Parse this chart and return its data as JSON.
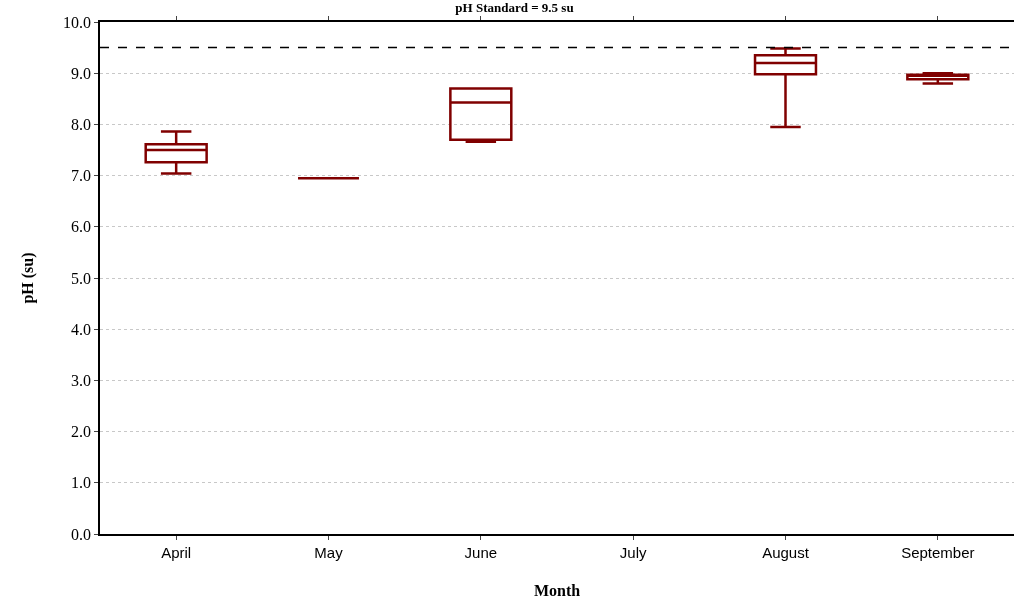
{
  "chart_data": {
    "type": "box",
    "title": "pH Standard = 9.5 su",
    "xlabel": "Month",
    "ylabel": "pH (su)",
    "categories": [
      "April",
      "May",
      "June",
      "July",
      "August",
      "September"
    ],
    "boxes": [
      {
        "low": 7.04,
        "q1": 7.26,
        "median": 7.5,
        "q3": 7.61,
        "high": 7.86
      },
      {
        "low": 6.95,
        "q1": 6.95,
        "median": 6.95,
        "q3": 6.95,
        "high": 6.95
      },
      {
        "low": 7.66,
        "q1": 7.7,
        "median": 8.43,
        "q3": 8.7,
        "high": 8.7
      },
      null,
      {
        "low": 7.95,
        "q1": 8.98,
        "median": 9.2,
        "q3": 9.35,
        "high": 9.48
      },
      {
        "low": 8.8,
        "q1": 8.88,
        "median": 8.95,
        "q3": 8.97,
        "high": 9.0
      }
    ],
    "color": "#800000",
    "ylim": [
      0,
      10
    ],
    "yticks": [
      {
        "value": 0,
        "label": "0.0"
      },
      {
        "value": 1,
        "label": "1.0"
      },
      {
        "value": 2,
        "label": "2.0"
      },
      {
        "value": 3,
        "label": "3.0"
      },
      {
        "value": 4,
        "label": "4.0"
      },
      {
        "value": 5,
        "label": "5.0"
      },
      {
        "value": 6,
        "label": "6.0"
      },
      {
        "value": 7,
        "label": "7.0"
      },
      {
        "value": 8,
        "label": "8.0"
      },
      {
        "value": 9,
        "label": "9.0"
      },
      {
        "value": 10,
        "label": "10.0"
      }
    ],
    "grid": "y",
    "ref_lines": [
      {
        "axis": "y",
        "value": 9.5,
        "color": "#000000",
        "line_style": "dashed"
      }
    ]
  }
}
